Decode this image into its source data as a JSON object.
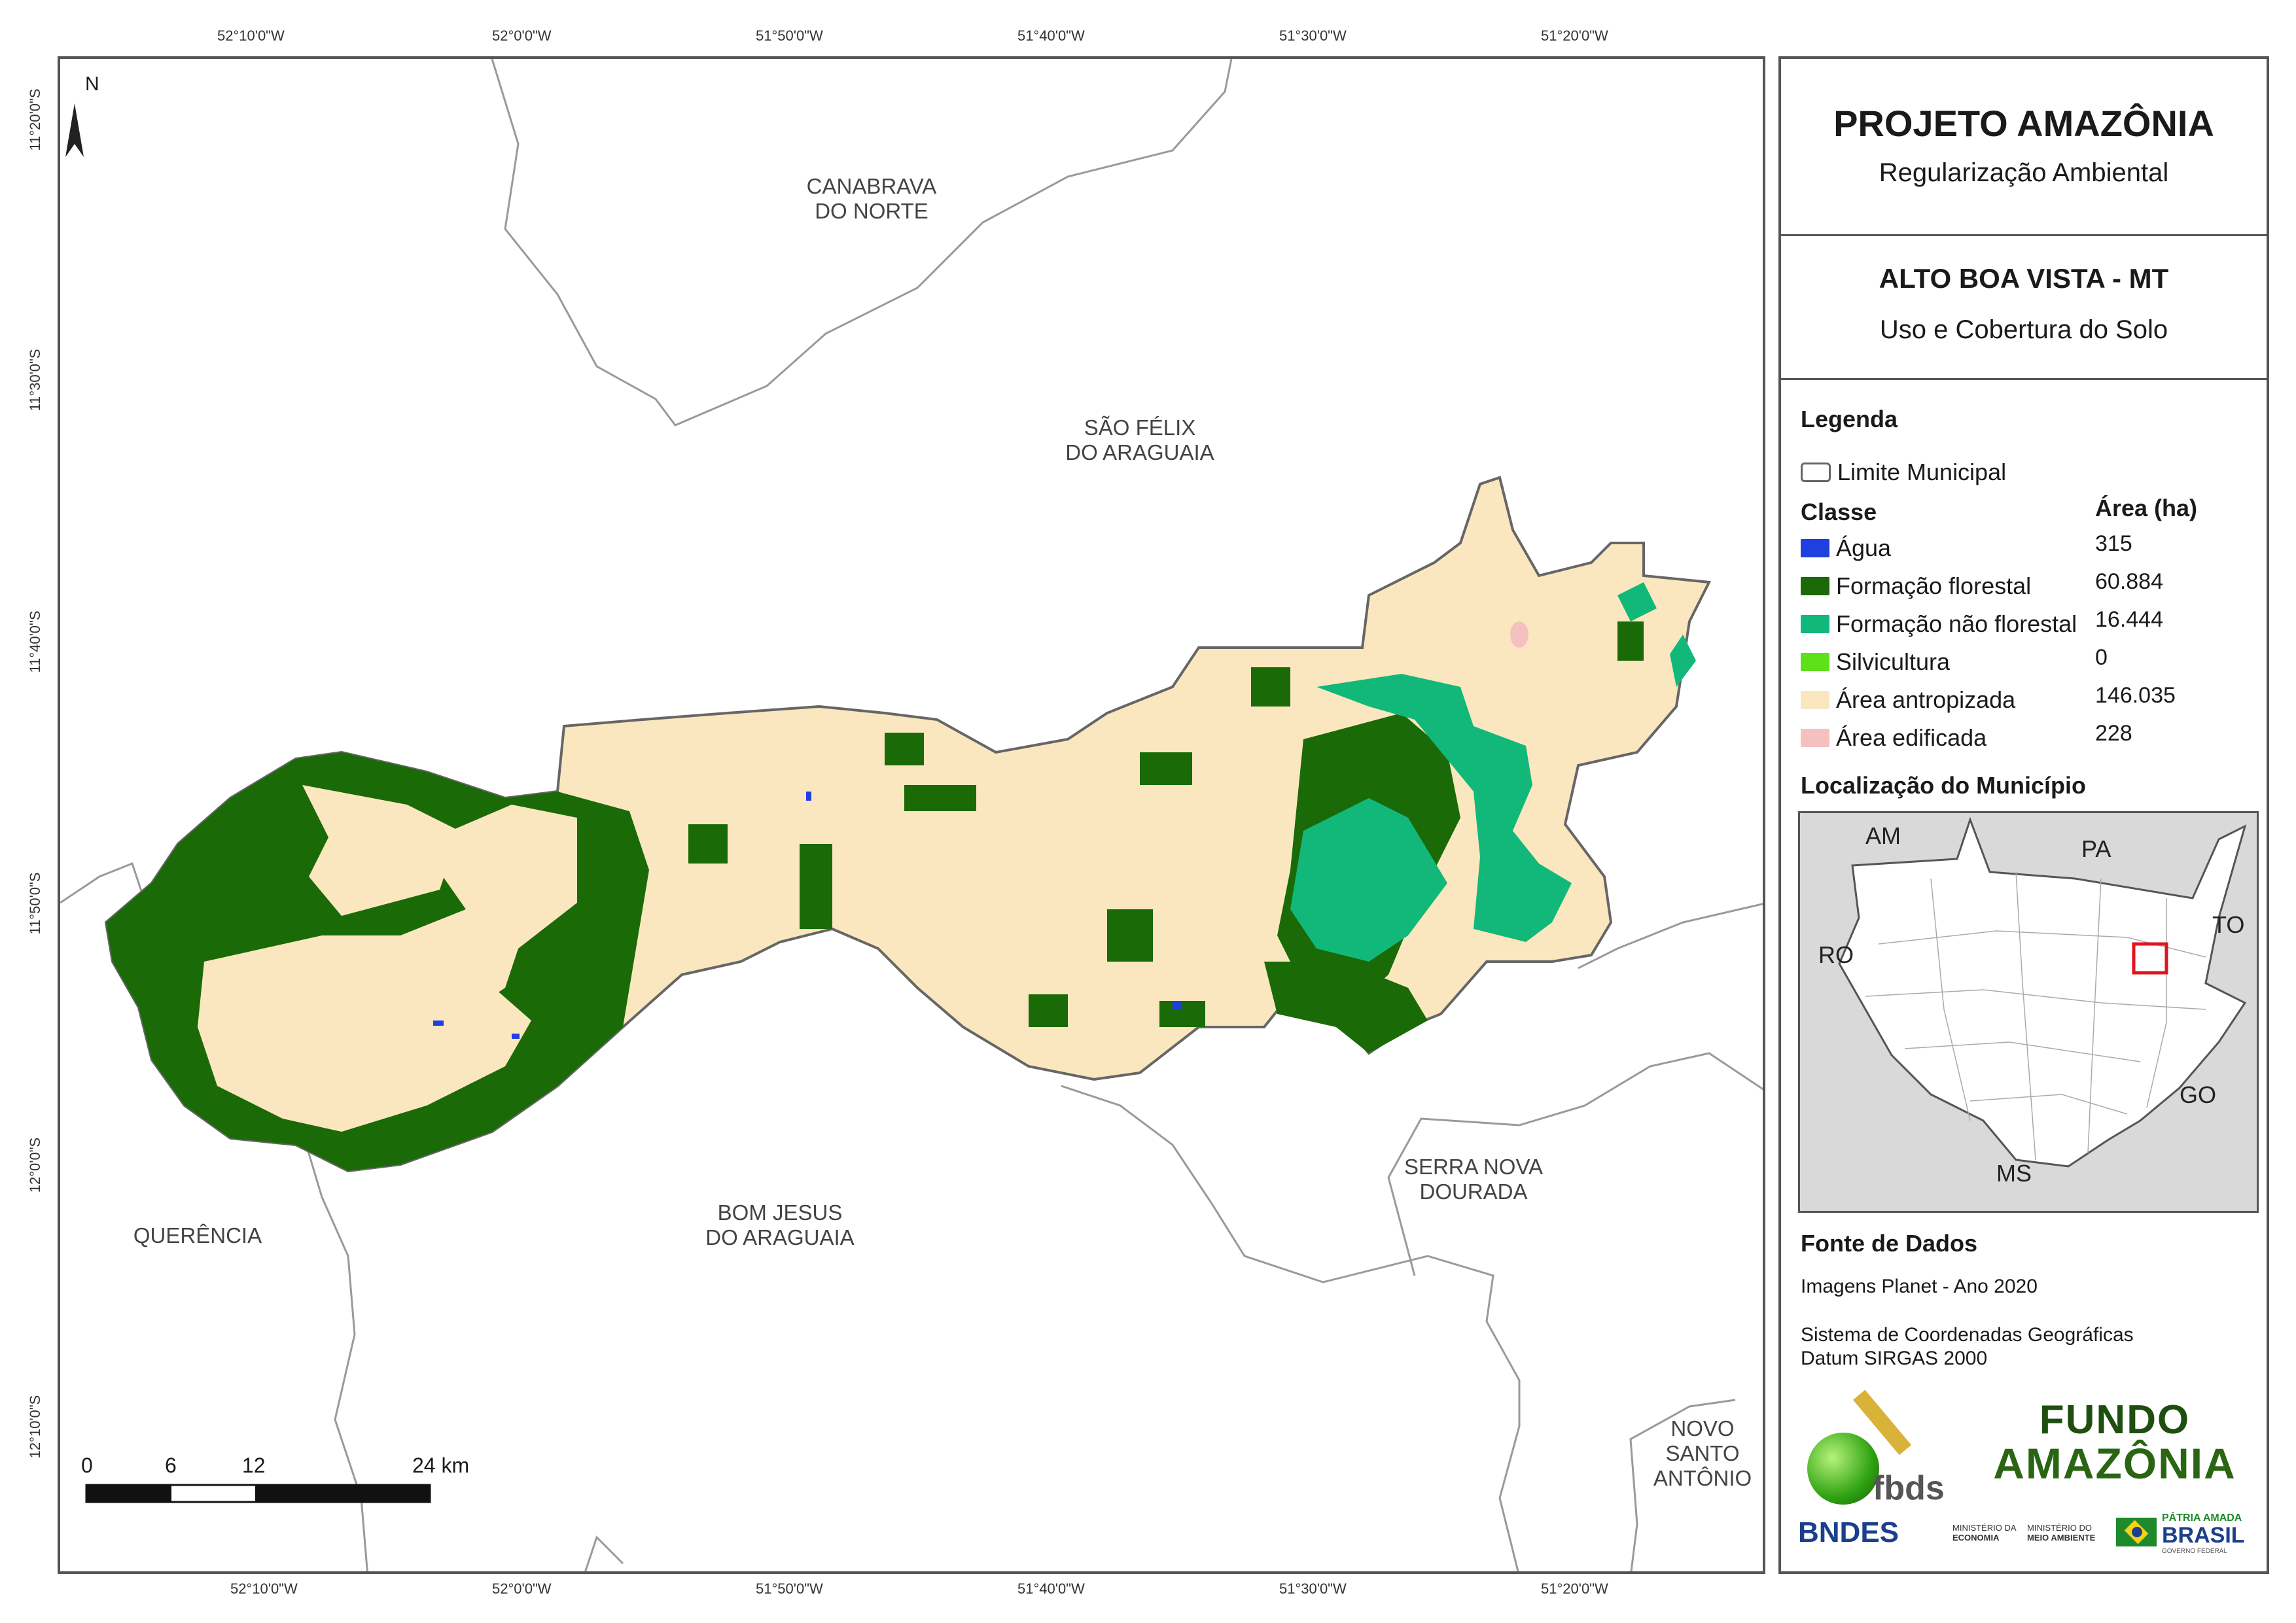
{
  "map": {
    "north_label": "N",
    "lon_ticks_top": [
      "52°10'0\"W",
      "52°0'0\"W",
      "51°50'0\"W",
      "51°40'0\"W",
      "51°30'0\"W",
      "51°20'0\"W"
    ],
    "lon_ticks_bottom": [
      "52°10'0\"W",
      "52°0'0\"W",
      "51°50'0\"W",
      "51°40'0\"W",
      "51°30'0\"W",
      "51°20'0\"W"
    ],
    "lat_ticks": [
      "11°20'0\"S",
      "11°30'0\"S",
      "11°40'0\"S",
      "11°50'0\"S",
      "12°0'0\"S",
      "12°10'0\"S"
    ],
    "neighbors": {
      "canabrava": [
        "CANABRAVA",
        "DO NORTE"
      ],
      "sao_felix": [
        "SÃO FÉLIX",
        "DO ARAGUAIA"
      ],
      "bom_jesus": [
        "BOM JESUS",
        "DO ARAGUAIA"
      ],
      "serra_nova": [
        "SERRA NOVA",
        "DOURADA"
      ],
      "querencia": [
        "QUERÊNCIA"
      ],
      "novo_santo": [
        "NOVO",
        "SANTO",
        "ANTÔNIO"
      ]
    },
    "scale": {
      "labels": [
        "0",
        "6",
        "12",
        "24 km"
      ]
    }
  },
  "panel": {
    "title": "PROJETO AMAZÔNIA",
    "subtitle": "Regularização Ambiental",
    "municipality": "ALTO BOA VISTA - MT",
    "theme": "Uso e Cobertura do Solo",
    "legend_heading": "Legenda",
    "boundary_label": "Limite Municipal",
    "class_header": "Classe",
    "area_header": "Área (ha)",
    "classes": [
      {
        "label": "Água",
        "area": "315",
        "color": "#1f3fe0"
      },
      {
        "label": "Formação florestal",
        "area": "60.884",
        "color": "#1a6b08"
      },
      {
        "label": "Formação não florestal",
        "area": "16.444",
        "color": "#12b87a"
      },
      {
        "label": "Silvicultura",
        "area": "0",
        "color": "#5ee01a"
      },
      {
        "label": "Área antropizada",
        "area": "146.035",
        "color": "#fbe7bf"
      },
      {
        "label": "Área edificada",
        "area": "228",
        "color": "#f5c0c0"
      }
    ],
    "location_heading": "Localização do Município",
    "states": [
      "AM",
      "PA",
      "RO",
      "TO",
      "GO",
      "MS"
    ],
    "source_heading": "Fonte de Dados",
    "source_lines": [
      "Imagens Planet - Ano 2020",
      "Sistema de Coordenadas Geográficas",
      "Datum SIRGAS 2000"
    ],
    "logos": {
      "fbds": "fbds",
      "fundo_line1": "FUNDO",
      "fundo_line2": "AMAZÔNIA",
      "bndes": "BNDES",
      "min_economia": [
        "MINISTÉRIO DA",
        "ECONOMIA"
      ],
      "min_ambiente": [
        "MINISTÉRIO DO",
        "MEIO AMBIENTE"
      ],
      "patria_line1": "PÁTRIA AMADA",
      "patria_line2": "BRASIL",
      "gov": "GOVERNO FEDERAL"
    }
  }
}
